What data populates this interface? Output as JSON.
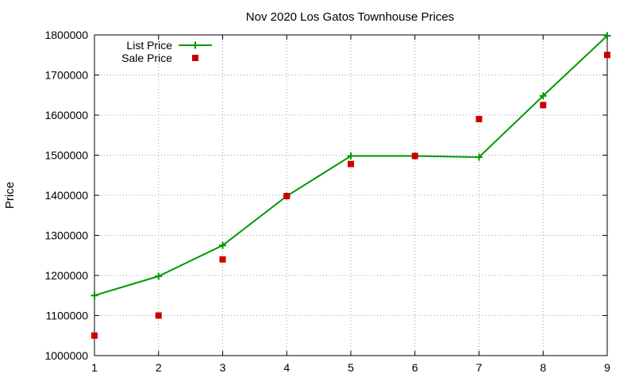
{
  "chart_data": {
    "type": "line",
    "title": "Nov 2020 Los Gatos Townhouse Prices",
    "xlabel": "",
    "ylabel": "Price",
    "xlim": [
      1,
      9
    ],
    "ylim": [
      1000000,
      1800000
    ],
    "x_ticks": [
      1,
      2,
      3,
      4,
      5,
      6,
      7,
      8,
      9
    ],
    "y_ticks": [
      1000000,
      1100000,
      1200000,
      1300000,
      1400000,
      1500000,
      1600000,
      1700000,
      1800000
    ],
    "grid": true,
    "legend_position": "top-left",
    "series": [
      {
        "name": "List Price",
        "style": "line-points",
        "marker": "plus",
        "color": "#009900",
        "x": [
          1,
          2,
          3,
          4,
          5,
          6,
          7,
          8,
          9
        ],
        "values": [
          1150000,
          1198000,
          1275000,
          1398000,
          1498000,
          1498000,
          1495000,
          1648000,
          1798000
        ]
      },
      {
        "name": "Sale Price",
        "style": "points",
        "marker": "square",
        "color": "#cc0000",
        "x": [
          1,
          2,
          3,
          4,
          5,
          6,
          7,
          8,
          9
        ],
        "values": [
          1050000,
          1100000,
          1240000,
          1398000,
          1478000,
          1498000,
          1590000,
          1625000,
          1750000
        ]
      }
    ]
  }
}
